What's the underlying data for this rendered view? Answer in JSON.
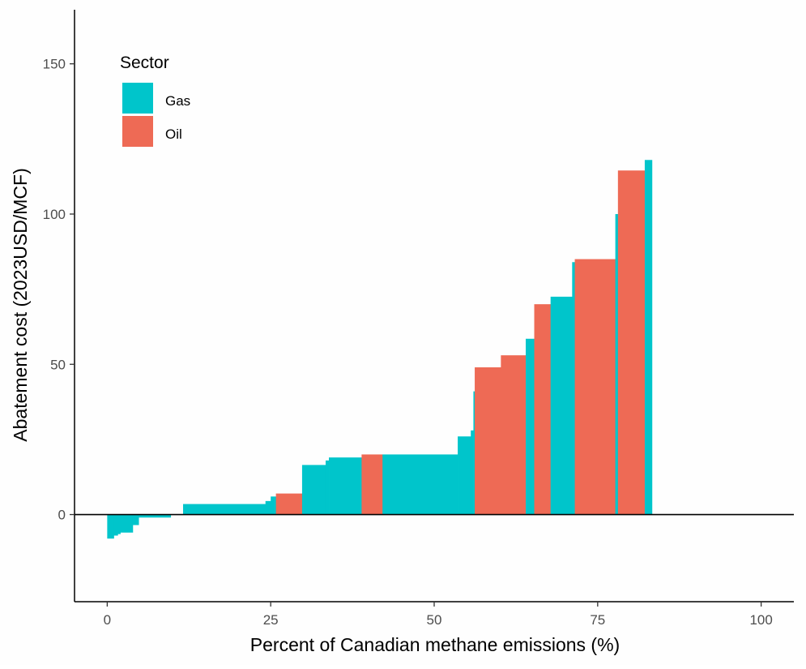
{
  "chart_data": {
    "type": "bar",
    "subtype": "marginal-abatement-cost-curve",
    "xlabel": "Percent of Canadian methane emissions (%)",
    "ylabel": "Abatement cost (2023USD/MCF)",
    "xlim": [
      -5,
      105
    ],
    "ylim": [
      -29,
      168
    ],
    "x_ticks": [
      0,
      25,
      50,
      75,
      100
    ],
    "y_ticks": [
      0,
      50,
      100,
      150
    ],
    "x_tick_labels": [
      "0",
      "25",
      "50",
      "75",
      "100"
    ],
    "y_tick_labels": [
      "0",
      "50",
      "100",
      "150"
    ],
    "zero_line": true,
    "grid": false,
    "legend": {
      "title": "Sector",
      "position": "top-left",
      "items": [
        {
          "name": "Gas",
          "color": "#00C5CB"
        },
        {
          "name": "Oil",
          "color": "#EE6A55"
        }
      ]
    },
    "colors": {
      "Gas": "#00C5CB",
      "Oil": "#EE6A55"
    },
    "segments": [
      {
        "sector": "Gas",
        "x_start": 0.0,
        "x_end": 1.0,
        "cost": -8
      },
      {
        "sector": "Gas",
        "x_start": 1.0,
        "x_end": 1.6,
        "cost": -7
      },
      {
        "sector": "Gas",
        "x_start": 1.6,
        "x_end": 2.0,
        "cost": -6.5
      },
      {
        "sector": "Gas",
        "x_start": 2.0,
        "x_end": 3.9,
        "cost": -6
      },
      {
        "sector": "Gas",
        "x_start": 3.9,
        "x_end": 4.8,
        "cost": -3.5
      },
      {
        "sector": "Gas",
        "x_start": 4.8,
        "x_end": 9.7,
        "cost": -1
      },
      {
        "sector": "Gas",
        "x_start": 11.6,
        "x_end": 24.2,
        "cost": 3.5
      },
      {
        "sector": "Gas",
        "x_start": 24.2,
        "x_end": 25.0,
        "cost": 4.5
      },
      {
        "sector": "Gas",
        "x_start": 25.0,
        "x_end": 25.8,
        "cost": 6
      },
      {
        "sector": "Oil",
        "x_start": 25.8,
        "x_end": 29.8,
        "cost": 7
      },
      {
        "sector": "Gas",
        "x_start": 29.8,
        "x_end": 33.4,
        "cost": 16.5
      },
      {
        "sector": "Gas",
        "x_start": 33.4,
        "x_end": 33.9,
        "cost": 18
      },
      {
        "sector": "Gas",
        "x_start": 33.9,
        "x_end": 38.9,
        "cost": 19
      },
      {
        "sector": "Oil",
        "x_start": 38.9,
        "x_end": 42.1,
        "cost": 20
      },
      {
        "sector": "Gas",
        "x_start": 42.1,
        "x_end": 53.6,
        "cost": 20
      },
      {
        "sector": "Gas",
        "x_start": 53.6,
        "x_end": 55.6,
        "cost": 26
      },
      {
        "sector": "Gas",
        "x_start": 55.6,
        "x_end": 56.0,
        "cost": 28
      },
      {
        "sector": "Gas",
        "x_start": 56.0,
        "x_end": 56.2,
        "cost": 41
      },
      {
        "sector": "Oil",
        "x_start": 56.2,
        "x_end": 60.2,
        "cost": 49
      },
      {
        "sector": "Oil",
        "x_start": 60.2,
        "x_end": 64.0,
        "cost": 53
      },
      {
        "sector": "Gas",
        "x_start": 64.0,
        "x_end": 65.3,
        "cost": 58.5
      },
      {
        "sector": "Oil",
        "x_start": 65.3,
        "x_end": 67.8,
        "cost": 70
      },
      {
        "sector": "Gas",
        "x_start": 67.8,
        "x_end": 71.1,
        "cost": 72.5
      },
      {
        "sector": "Gas",
        "x_start": 71.1,
        "x_end": 71.5,
        "cost": 84
      },
      {
        "sector": "Oil",
        "x_start": 71.5,
        "x_end": 77.7,
        "cost": 85
      },
      {
        "sector": "Gas",
        "x_start": 77.7,
        "x_end": 78.1,
        "cost": 100
      },
      {
        "sector": "Oil",
        "x_start": 78.1,
        "x_end": 82.2,
        "cost": 114.5
      },
      {
        "sector": "Gas",
        "x_start": 82.2,
        "x_end": 83.3,
        "cost": 118
      }
    ]
  }
}
